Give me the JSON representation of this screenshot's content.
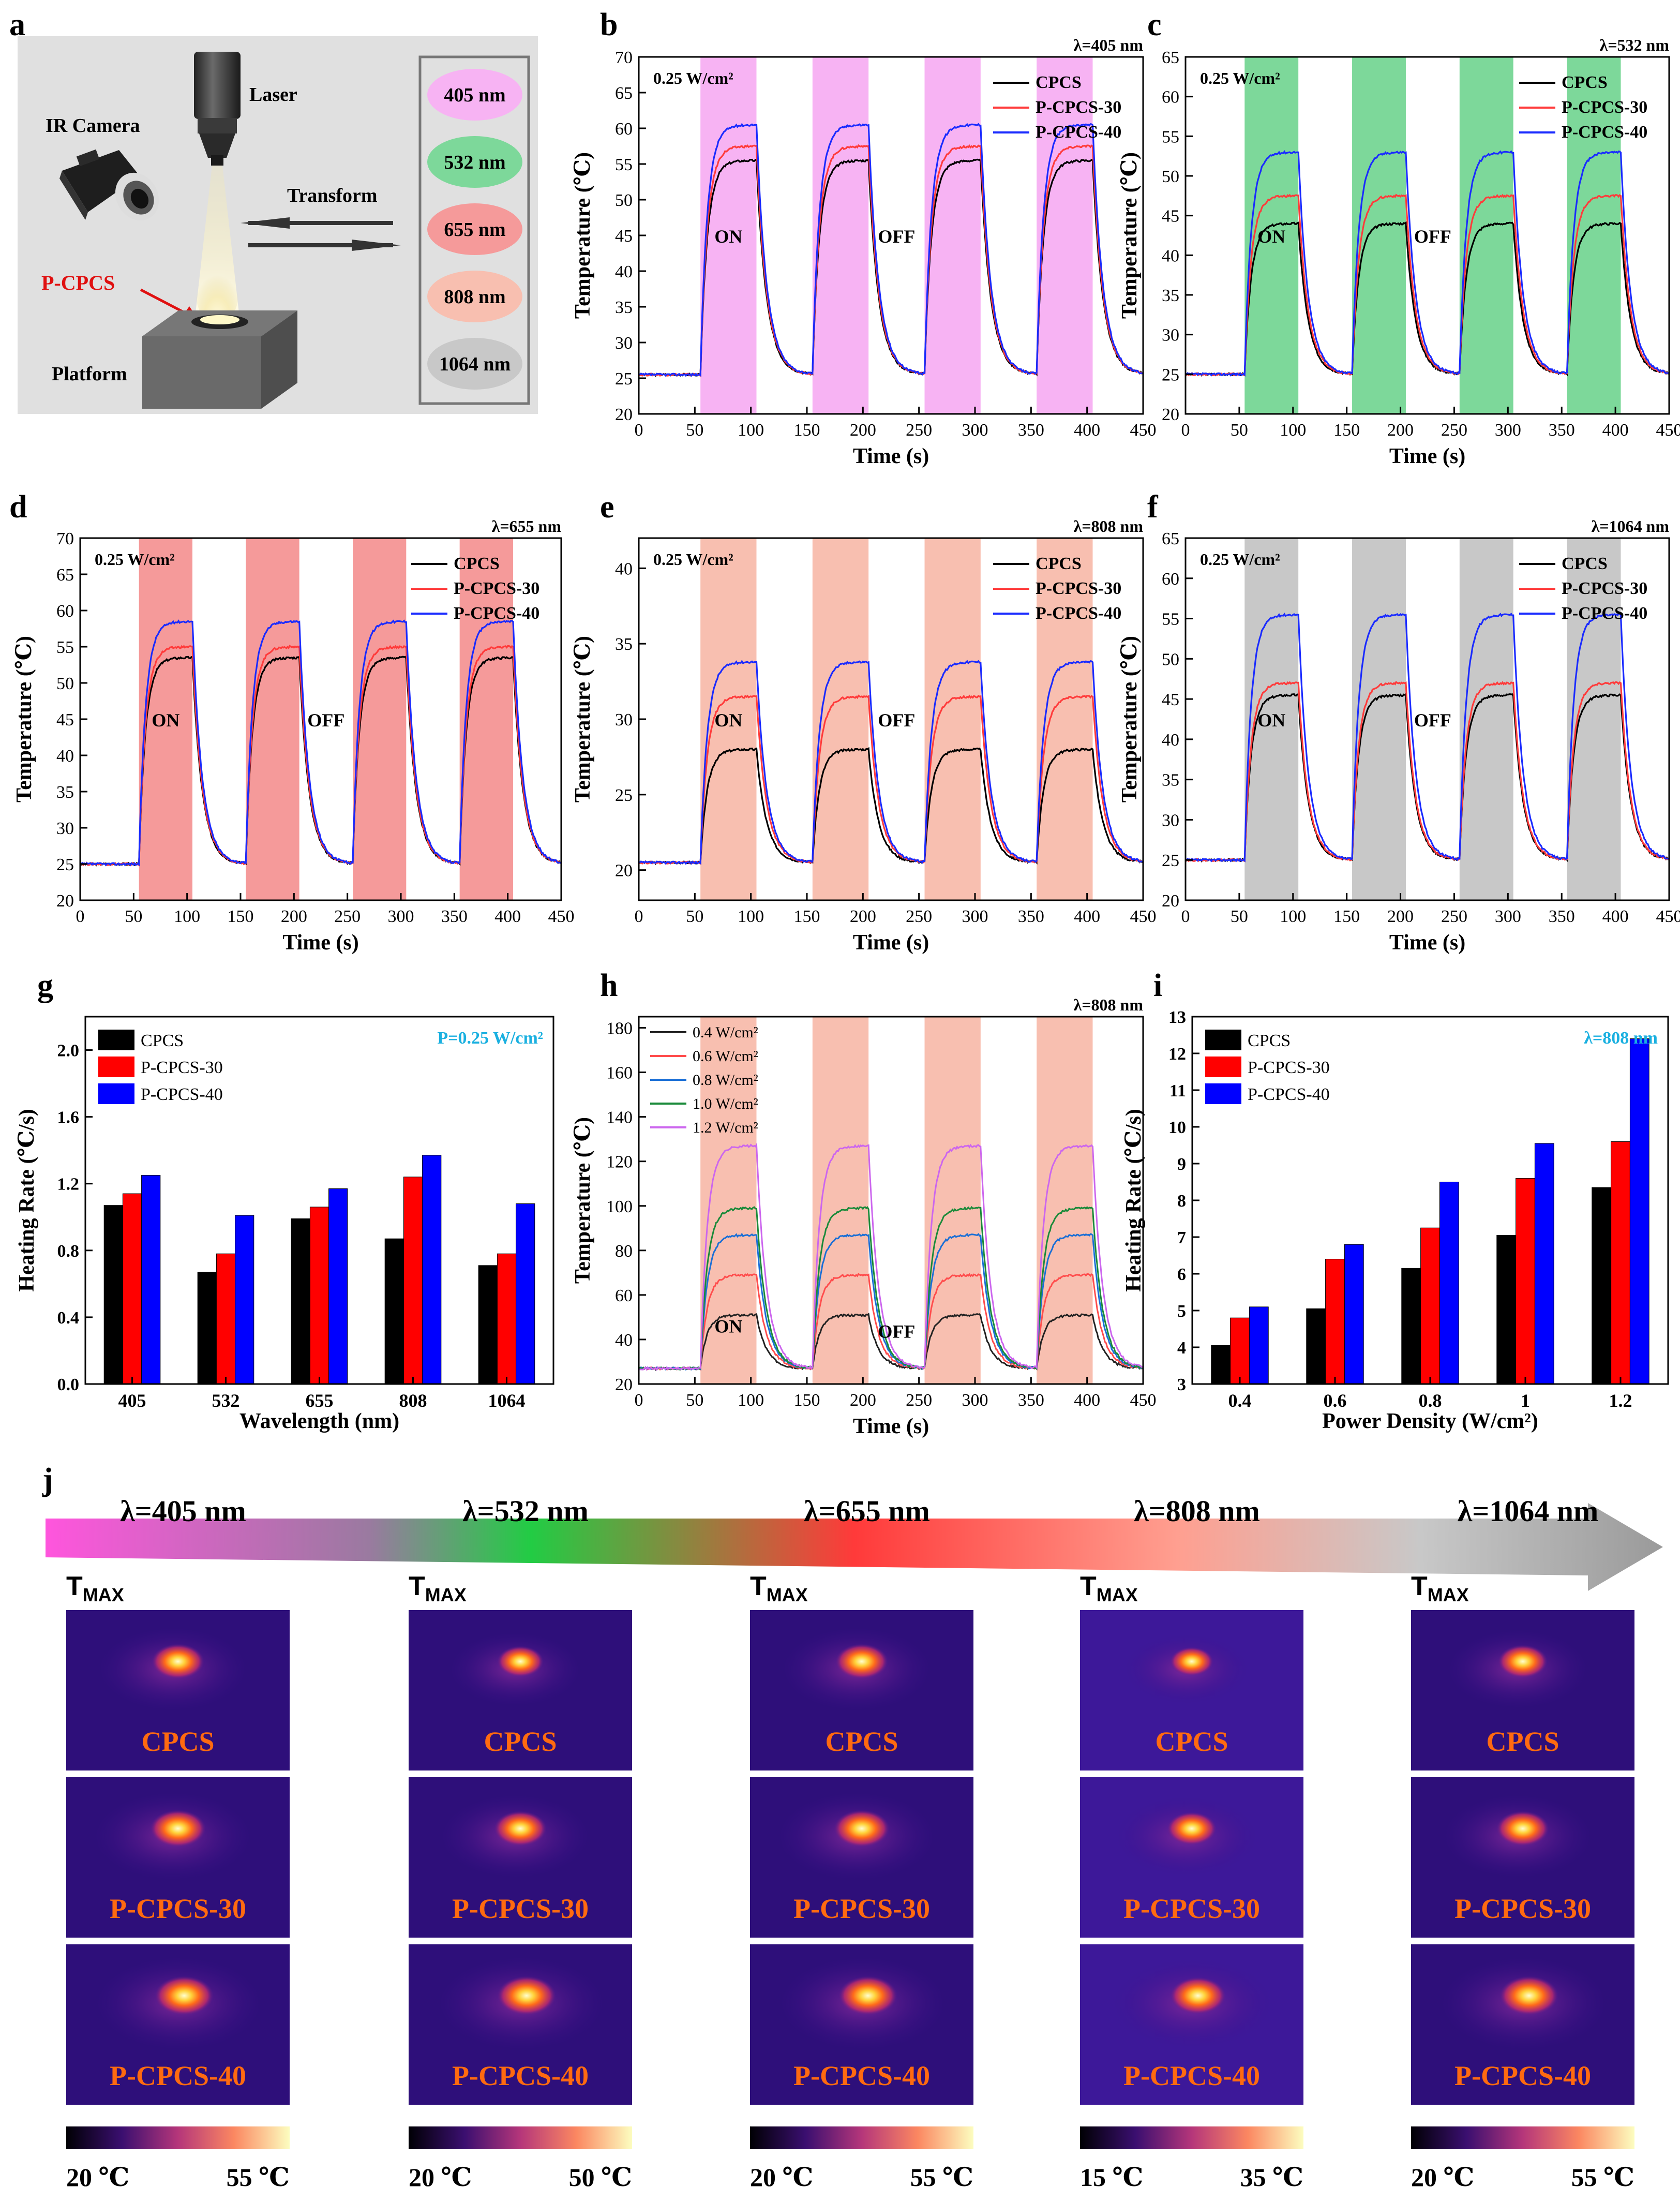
{
  "figure": {
    "panel_letters": [
      "a",
      "b",
      "c",
      "d",
      "e",
      "f",
      "g",
      "h",
      "i",
      "j"
    ],
    "colors": {
      "black": "#000000",
      "red": "#ff3b3b",
      "blue": "#1a2bff",
      "h_04": "#222222",
      "h_06": "#ff4d4d",
      "h_08": "#1a6fd6",
      "h_10": "#1a8a3a",
      "h_12": "#cc66ee",
      "band_405": "#f7b3f3",
      "band_532": "#7dd89a",
      "band_655": "#f59a9a",
      "band_808": "#f8bfb0",
      "band_1064": "#c8c8c8"
    }
  },
  "schematic": {
    "laser": "Laser",
    "ir_camera": "IR Camera",
    "transform": "Transform",
    "sample": "P-CPCS",
    "platform": "Platform",
    "wavelengths": [
      {
        "label": "405 nm",
        "color": "#f7b3f3"
      },
      {
        "label": "532 nm",
        "color": "#7dd89a"
      },
      {
        "label": "655 nm",
        "color": "#f59a9a"
      },
      {
        "label": "808 nm",
        "color": "#f8bfb0"
      },
      {
        "label": "1064 nm",
        "color": "#c8c8c8"
      }
    ]
  },
  "chart_data": [
    {
      "id": "b",
      "type": "line",
      "lambda": "λ=405 nm",
      "power": "0.25 W/cm²",
      "xlabel": "Time (s)",
      "ylabel": "Temperature (℃)",
      "xlim": [
        0,
        450
      ],
      "ylim": [
        20,
        70
      ],
      "yticks": [
        20,
        25,
        30,
        35,
        40,
        45,
        50,
        55,
        60,
        65,
        70
      ],
      "xticks": [
        0,
        50,
        100,
        150,
        200,
        250,
        300,
        350,
        400,
        450
      ],
      "band_color": "#f7b3f3",
      "on_intervals": [
        [
          55,
          105
        ],
        [
          155,
          205
        ],
        [
          255,
          305
        ],
        [
          355,
          405
        ]
      ],
      "on_label": "ON",
      "off_label": "OFF",
      "baseline": 25.5,
      "series": [
        {
          "name": "CPCS",
          "color": "#000000",
          "plateau": 55.5
        },
        {
          "name": "P-CPCS-30",
          "color": "#ff3b3b",
          "plateau": 57.5
        },
        {
          "name": "P-CPCS-40",
          "color": "#1a2bff",
          "plateau": 60.5
        }
      ]
    },
    {
      "id": "c",
      "type": "line",
      "lambda": "λ=532 nm",
      "power": "0.25 W/cm²",
      "xlabel": "Time (s)",
      "ylabel": "Temperature (℃)",
      "xlim": [
        0,
        450
      ],
      "ylim": [
        20,
        65
      ],
      "yticks": [
        20,
        25,
        30,
        35,
        40,
        45,
        50,
        55,
        60,
        65
      ],
      "xticks": [
        0,
        50,
        100,
        150,
        200,
        250,
        300,
        350,
        400,
        450
      ],
      "band_color": "#7dd89a",
      "on_intervals": [
        [
          55,
          105
        ],
        [
          155,
          205
        ],
        [
          255,
          305
        ],
        [
          355,
          405
        ]
      ],
      "on_label": "ON",
      "off_label": "OFF",
      "baseline": 25,
      "series": [
        {
          "name": "CPCS",
          "color": "#000000",
          "plateau": 44
        },
        {
          "name": "P-CPCS-30",
          "color": "#ff3b3b",
          "plateau": 47.5
        },
        {
          "name": "P-CPCS-40",
          "color": "#1a2bff",
          "plateau": 53
        }
      ]
    },
    {
      "id": "d",
      "type": "line",
      "lambda": "λ=655 nm",
      "power": "0.25 W/cm²",
      "xlabel": "Time (s)",
      "ylabel": "Temperature (℃)",
      "xlim": [
        0,
        450
      ],
      "ylim": [
        20,
        70
      ],
      "yticks": [
        20,
        25,
        30,
        35,
        40,
        45,
        50,
        55,
        60,
        65,
        70
      ],
      "xticks": [
        0,
        50,
        100,
        150,
        200,
        250,
        300,
        350,
        400,
        450
      ],
      "band_color": "#f59a9a",
      "on_intervals": [
        [
          55,
          105
        ],
        [
          155,
          205
        ],
        [
          255,
          305
        ],
        [
          355,
          405
        ]
      ],
      "on_label": "ON",
      "off_label": "OFF",
      "baseline": 25,
      "series": [
        {
          "name": "CPCS",
          "color": "#000000",
          "plateau": 53.5
        },
        {
          "name": "P-CPCS-30",
          "color": "#ff3b3b",
          "plateau": 55
        },
        {
          "name": "P-CPCS-40",
          "color": "#1a2bff",
          "plateau": 58.5
        }
      ]
    },
    {
      "id": "e",
      "type": "line",
      "lambda": "λ=808 nm",
      "power": "0.25 W/cm²",
      "xlabel": "Time (s)",
      "ylabel": "Temperature (℃)",
      "xlim": [
        0,
        450
      ],
      "ylim": [
        18,
        42
      ],
      "yticks": [
        20,
        25,
        30,
        35,
        40
      ],
      "xticks": [
        0,
        50,
        100,
        150,
        200,
        250,
        300,
        350,
        400,
        450
      ],
      "band_color": "#f8bfb0",
      "on_intervals": [
        [
          55,
          105
        ],
        [
          155,
          205
        ],
        [
          255,
          305
        ],
        [
          355,
          405
        ]
      ],
      "on_label": "ON",
      "off_label": "OFF",
      "baseline": 20.5,
      "series": [
        {
          "name": "CPCS",
          "color": "#000000",
          "plateau": 28
        },
        {
          "name": "P-CPCS-30",
          "color": "#ff3b3b",
          "plateau": 31.5
        },
        {
          "name": "P-CPCS-40",
          "color": "#1a2bff",
          "plateau": 33.8
        }
      ]
    },
    {
      "id": "f",
      "type": "line",
      "lambda": "λ=1064 nm",
      "power": "0.25 W/cm²",
      "xlabel": "Time (s)",
      "ylabel": "Temperature (℃)",
      "xlim": [
        0,
        450
      ],
      "ylim": [
        20,
        65
      ],
      "yticks": [
        20,
        25,
        30,
        35,
        40,
        45,
        50,
        55,
        60,
        65
      ],
      "xticks": [
        0,
        50,
        100,
        150,
        200,
        250,
        300,
        350,
        400,
        450
      ],
      "band_color": "#c8c8c8",
      "on_intervals": [
        [
          55,
          105
        ],
        [
          155,
          205
        ],
        [
          255,
          305
        ],
        [
          355,
          405
        ]
      ],
      "on_label": "ON",
      "off_label": "OFF",
      "baseline": 25,
      "series": [
        {
          "name": "CPCS",
          "color": "#000000",
          "plateau": 45.5
        },
        {
          "name": "P-CPCS-30",
          "color": "#ff3b3b",
          "plateau": 47
        },
        {
          "name": "P-CPCS-40",
          "color": "#1a2bff",
          "plateau": 55.5
        }
      ]
    },
    {
      "id": "g",
      "type": "bar",
      "xlabel": "Wavelength (nm)",
      "ylabel": "Heating Rate (℃/s)",
      "categories": [
        "405",
        "532",
        "655",
        "808",
        "1064"
      ],
      "ylim": [
        0,
        2.2
      ],
      "yticks": [
        0.0,
        0.4,
        0.8,
        1.2,
        1.6,
        2.0
      ],
      "annotation": "P=0.25 W/cm²",
      "series": [
        {
          "name": "CPCS",
          "color": "#000000",
          "values": [
            1.07,
            0.67,
            0.99,
            0.87,
            0.71
          ]
        },
        {
          "name": "P-CPCS-30",
          "color": "#ff0000",
          "values": [
            1.14,
            0.78,
            1.06,
            1.24,
            0.78
          ]
        },
        {
          "name": "P-CPCS-40",
          "color": "#0000ff",
          "values": [
            1.25,
            1.01,
            1.17,
            1.37,
            1.08
          ]
        }
      ]
    },
    {
      "id": "h",
      "type": "line",
      "lambda": "λ=808 nm",
      "xlabel": "Time (s)",
      "ylabel": "Temperature (℃)",
      "xlim": [
        0,
        450
      ],
      "ylim": [
        20,
        185
      ],
      "yticks": [
        20,
        40,
        60,
        80,
        100,
        120,
        140,
        160,
        180
      ],
      "xticks": [
        0,
        50,
        100,
        150,
        200,
        250,
        300,
        350,
        400,
        450
      ],
      "band_color": "#f8bfb0",
      "on_intervals": [
        [
          55,
          105
        ],
        [
          155,
          205
        ],
        [
          255,
          305
        ],
        [
          355,
          405
        ]
      ],
      "on_label": "ON",
      "off_label": "OFF",
      "baseline": 27,
      "series": [
        {
          "name": "0.4 W/cm²",
          "color": "#222222",
          "plateau": 51
        },
        {
          "name": "0.6 W/cm²",
          "color": "#ff4d4d",
          "plateau": 69
        },
        {
          "name": "0.8 W/cm²",
          "color": "#1a6fd6",
          "plateau": 87
        },
        {
          "name": "1.0 W/cm²",
          "color": "#1a8a3a",
          "plateau": 99
        },
        {
          "name": "1.2 W/cm²",
          "color": "#cc66ee",
          "plateau": 127
        }
      ]
    },
    {
      "id": "i",
      "type": "bar",
      "xlabel": "Power Density (W/cm²)",
      "ylabel": "Heating Rate (℃/s)",
      "categories": [
        "0.4",
        "0.6",
        "0.8",
        "1",
        "1.2"
      ],
      "ylim": [
        3,
        13
      ],
      "yticks": [
        3,
        4,
        5,
        6,
        7,
        8,
        9,
        10,
        11,
        12,
        13
      ],
      "annotation": "λ=808 nm",
      "series": [
        {
          "name": "CPCS",
          "color": "#000000",
          "values": [
            4.05,
            5.05,
            6.15,
            7.05,
            8.35
          ]
        },
        {
          "name": "P-CPCS-30",
          "color": "#ff0000",
          "values": [
            4.8,
            6.4,
            7.25,
            8.6,
            9.6
          ]
        },
        {
          "name": "P-CPCS-40",
          "color": "#0000ff",
          "values": [
            5.1,
            6.8,
            8.5,
            9.55,
            12.4
          ]
        }
      ]
    }
  ],
  "thermal": {
    "title_prefix": "T",
    "title_subscript": "MAX",
    "samples": [
      "CPCS",
      "P-CPCS-30",
      "P-CPCS-40"
    ],
    "columns": [
      {
        "lambda": "λ=405 nm",
        "scale_min": "20 ℃",
        "scale_max": "55 ℃",
        "intensity": [
          0.85,
          0.9,
          0.95
        ]
      },
      {
        "lambda": "λ=532 nm",
        "scale_min": "20 ℃",
        "scale_max": "50 ℃",
        "intensity": [
          0.75,
          0.85,
          0.95
        ]
      },
      {
        "lambda": "λ=655 nm",
        "scale_min": "20 ℃",
        "scale_max": "55 ℃",
        "intensity": [
          0.85,
          0.9,
          0.95
        ]
      },
      {
        "lambda": "λ=808 nm",
        "scale_min": "15 ℃",
        "scale_max": "35 ℃",
        "intensity": [
          0.7,
          0.8,
          0.9
        ]
      },
      {
        "lambda": "λ=1064 nm",
        "scale_min": "20 ℃",
        "scale_max": "55 ℃",
        "intensity": [
          0.8,
          0.85,
          0.95
        ]
      }
    ]
  }
}
